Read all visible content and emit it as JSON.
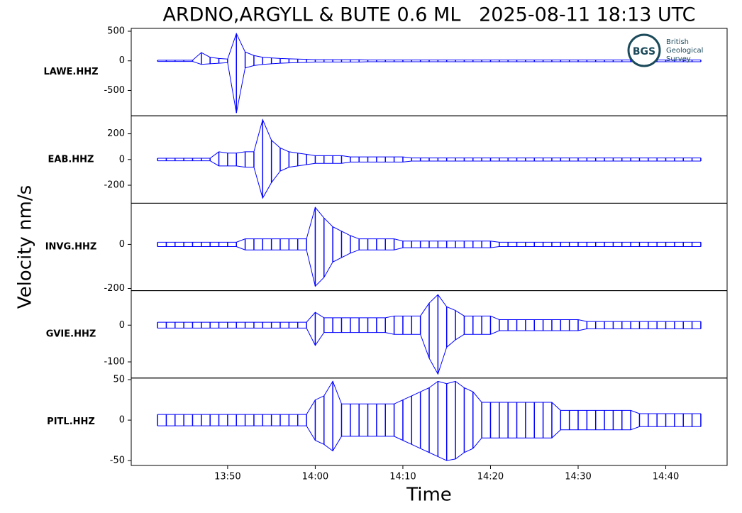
{
  "chart_data": {
    "type": "seismogram",
    "title": "ARDNO,ARGYLL & BUTE 0.6 ML   2025-08-11 18:13 UTC",
    "y_label": "Velocity nm/s",
    "x_label": "Time",
    "logo": {
      "initials": "BGS",
      "lines": [
        "British",
        "Geological",
        "Survey"
      ]
    },
    "x": [
      "13:42",
      "13:43",
      "13:44",
      "13:45",
      "13:46",
      "13:47",
      "13:48",
      "13:49",
      "13:50",
      "13:51",
      "13:52",
      "13:53",
      "13:54",
      "13:55",
      "13:56",
      "13:57",
      "13:58",
      "13:59",
      "14:00",
      "14:01",
      "14:02",
      "14:03",
      "14:04",
      "14:05",
      "14:06",
      "14:07",
      "14:08",
      "14:09",
      "14:10",
      "14:11",
      "14:12",
      "14:13",
      "14:14",
      "14:15",
      "14:16",
      "14:17",
      "14:18",
      "14:19",
      "14:20",
      "14:21",
      "14:22",
      "14:23",
      "14:24",
      "14:25",
      "14:26",
      "14:27",
      "14:28",
      "14:29",
      "14:30",
      "14:31",
      "14:32",
      "14:33",
      "14:34",
      "14:35",
      "14:36",
      "14:37",
      "14:38",
      "14:39",
      "14:40",
      "14:41",
      "14:42",
      "14:43",
      "14:44"
    ],
    "xlim": [
      "13:39",
      "14:47"
    ],
    "xticks": [
      "13:50",
      "14:00",
      "14:10",
      "14:20",
      "14:30",
      "14:40"
    ],
    "panels": [
      {
        "name": "LAWE.HHZ",
        "color": "#0000ff",
        "ylim": [
          -928,
          548
        ],
        "yticks": [
          500,
          0,
          -500
        ],
        "max": [
          10,
          10,
          10,
          10,
          10,
          140,
          60,
          40,
          30,
          460,
          150,
          90,
          60,
          50,
          40,
          35,
          30,
          25,
          20,
          20,
          20,
          20,
          20,
          20,
          15,
          15,
          15,
          15,
          15,
          15,
          15,
          15,
          15,
          15,
          15,
          15,
          15,
          15,
          15,
          15,
          15,
          15,
          15,
          15,
          15,
          15,
          15,
          15,
          15,
          15,
          15,
          15,
          15,
          15,
          15,
          15,
          15,
          15,
          15,
          15,
          15,
          15,
          15
        ],
        "min": [
          -10,
          -10,
          -10,
          -10,
          -10,
          -60,
          -50,
          -40,
          -30,
          -880,
          -120,
          -80,
          -60,
          -50,
          -40,
          -35,
          -30,
          -25,
          -20,
          -20,
          -20,
          -20,
          -20,
          -20,
          -15,
          -15,
          -15,
          -15,
          -15,
          -15,
          -15,
          -15,
          -15,
          -15,
          -15,
          -15,
          -15,
          -15,
          -15,
          -15,
          -15,
          -15,
          -15,
          -15,
          -15,
          -15,
          -15,
          -15,
          -15,
          -15,
          -15,
          -15,
          -15,
          -15,
          -15,
          -15,
          -15,
          -15,
          -15,
          -15,
          -15,
          -15,
          -15
        ]
      },
      {
        "name": "EAB.HHZ",
        "color": "#0000ff",
        "ylim": [
          -340,
          340
        ],
        "yticks": [
          200,
          0,
          -200
        ],
        "max": [
          10,
          10,
          10,
          10,
          10,
          10,
          10,
          60,
          50,
          50,
          60,
          60,
          310,
          150,
          90,
          60,
          50,
          40,
          30,
          30,
          30,
          30,
          20,
          20,
          20,
          20,
          20,
          20,
          20,
          12,
          12,
          12,
          12,
          12,
          12,
          12,
          12,
          12,
          12,
          12,
          12,
          12,
          12,
          12,
          12,
          12,
          12,
          12,
          12,
          12,
          12,
          12,
          12,
          12,
          12,
          12,
          12,
          12,
          12,
          12,
          12,
          12,
          12
        ],
        "min": [
          -10,
          -10,
          -10,
          -10,
          -10,
          -10,
          -10,
          -50,
          -50,
          -50,
          -60,
          -60,
          -300,
          -180,
          -90,
          -60,
          -50,
          -40,
          -30,
          -30,
          -30,
          -30,
          -20,
          -20,
          -20,
          -20,
          -20,
          -20,
          -20,
          -12,
          -12,
          -12,
          -12,
          -12,
          -12,
          -12,
          -12,
          -12,
          -12,
          -12,
          -12,
          -12,
          -12,
          -12,
          -12,
          -12,
          -12,
          -12,
          -12,
          -12,
          -12,
          -12,
          -12,
          -12,
          -12,
          -12,
          -12,
          -12,
          -12,
          -12,
          -12,
          -12,
          -12
        ]
      },
      {
        "name": "INVG.HHZ",
        "color": "#0000ff",
        "ylim": [
          -210,
          187
        ],
        "yticks": [
          0,
          -200
        ],
        "max": [
          10,
          10,
          10,
          10,
          10,
          10,
          10,
          10,
          10,
          10,
          25,
          25,
          25,
          25,
          25,
          25,
          25,
          25,
          168,
          120,
          80,
          60,
          40,
          25,
          25,
          25,
          25,
          25,
          15,
          15,
          15,
          15,
          15,
          15,
          15,
          15,
          15,
          15,
          15,
          10,
          10,
          10,
          10,
          10,
          10,
          10,
          10,
          10,
          10,
          10,
          10,
          10,
          10,
          10,
          10,
          10,
          10,
          10,
          10,
          10,
          10,
          10,
          10
        ],
        "min": [
          -10,
          -10,
          -10,
          -10,
          -10,
          -10,
          -10,
          -10,
          -10,
          -10,
          -25,
          -25,
          -25,
          -25,
          -25,
          -25,
          -25,
          -25,
          -190,
          -150,
          -80,
          -60,
          -40,
          -25,
          -25,
          -25,
          -25,
          -25,
          -15,
          -15,
          -15,
          -15,
          -15,
          -15,
          -15,
          -15,
          -15,
          -15,
          -15,
          -10,
          -10,
          -10,
          -10,
          -10,
          -10,
          -10,
          -10,
          -10,
          -10,
          -10,
          -10,
          -10,
          -10,
          -10,
          -10,
          -10,
          -10,
          -10,
          -10,
          -10,
          -10,
          -10,
          -10
        ]
      },
      {
        "name": "GVIE.HHZ",
        "color": "#0000ff",
        "ylim": [
          -144,
          94
        ],
        "yticks": [
          0,
          -100
        ],
        "max": [
          8,
          8,
          8,
          8,
          8,
          8,
          8,
          8,
          8,
          8,
          8,
          8,
          8,
          8,
          8,
          8,
          8,
          8,
          35,
          20,
          20,
          20,
          20,
          20,
          20,
          20,
          20,
          25,
          25,
          25,
          25,
          60,
          83,
          50,
          40,
          25,
          25,
          25,
          25,
          15,
          15,
          15,
          15,
          15,
          15,
          15,
          15,
          15,
          15,
          10,
          10,
          10,
          10,
          10,
          10,
          10,
          10,
          10,
          10,
          10,
          10,
          10,
          10
        ],
        "min": [
          -8,
          -8,
          -8,
          -8,
          -8,
          -8,
          -8,
          -8,
          -8,
          -8,
          -8,
          -8,
          -8,
          -8,
          -8,
          -8,
          -8,
          -8,
          -55,
          -20,
          -20,
          -20,
          -20,
          -20,
          -20,
          -20,
          -20,
          -25,
          -25,
          -25,
          -25,
          -90,
          -133,
          -60,
          -40,
          -25,
          -25,
          -25,
          -25,
          -15,
          -15,
          -15,
          -15,
          -15,
          -15,
          -15,
          -15,
          -15,
          -15,
          -10,
          -10,
          -10,
          -10,
          -10,
          -10,
          -10,
          -10,
          -10,
          -10,
          -10,
          -10,
          -10,
          -10
        ]
      },
      {
        "name": "PITL.HHZ",
        "color": "#0000ff",
        "ylim": [
          -56,
          52
        ],
        "yticks": [
          50,
          0,
          -50
        ],
        "max": [
          7,
          7,
          7,
          7,
          7,
          7,
          7,
          7,
          7,
          7,
          7,
          7,
          7,
          7,
          7,
          7,
          7,
          7,
          25,
          30,
          48,
          20,
          20,
          20,
          20,
          20,
          20,
          20,
          25,
          30,
          35,
          40,
          48,
          45,
          48,
          40,
          35,
          22,
          22,
          22,
          22,
          22,
          22,
          22,
          22,
          22,
          12,
          12,
          12,
          12,
          12,
          12,
          12,
          12,
          12,
          8,
          8,
          8,
          8,
          8,
          8,
          8,
          8
        ],
        "min": [
          -7,
          -7,
          -7,
          -7,
          -7,
          -7,
          -7,
          -7,
          -7,
          -7,
          -7,
          -7,
          -7,
          -7,
          -7,
          -7,
          -7,
          -7,
          -25,
          -30,
          -38,
          -20,
          -20,
          -20,
          -20,
          -20,
          -20,
          -20,
          -25,
          -30,
          -35,
          -40,
          -45,
          -50,
          -48,
          -40,
          -35,
          -22,
          -22,
          -22,
          -22,
          -22,
          -22,
          -22,
          -22,
          -22,
          -12,
          -12,
          -12,
          -12,
          -12,
          -12,
          -12,
          -12,
          -12,
          -8,
          -8,
          -8,
          -8,
          -8,
          -8,
          -8,
          -8
        ]
      }
    ]
  }
}
